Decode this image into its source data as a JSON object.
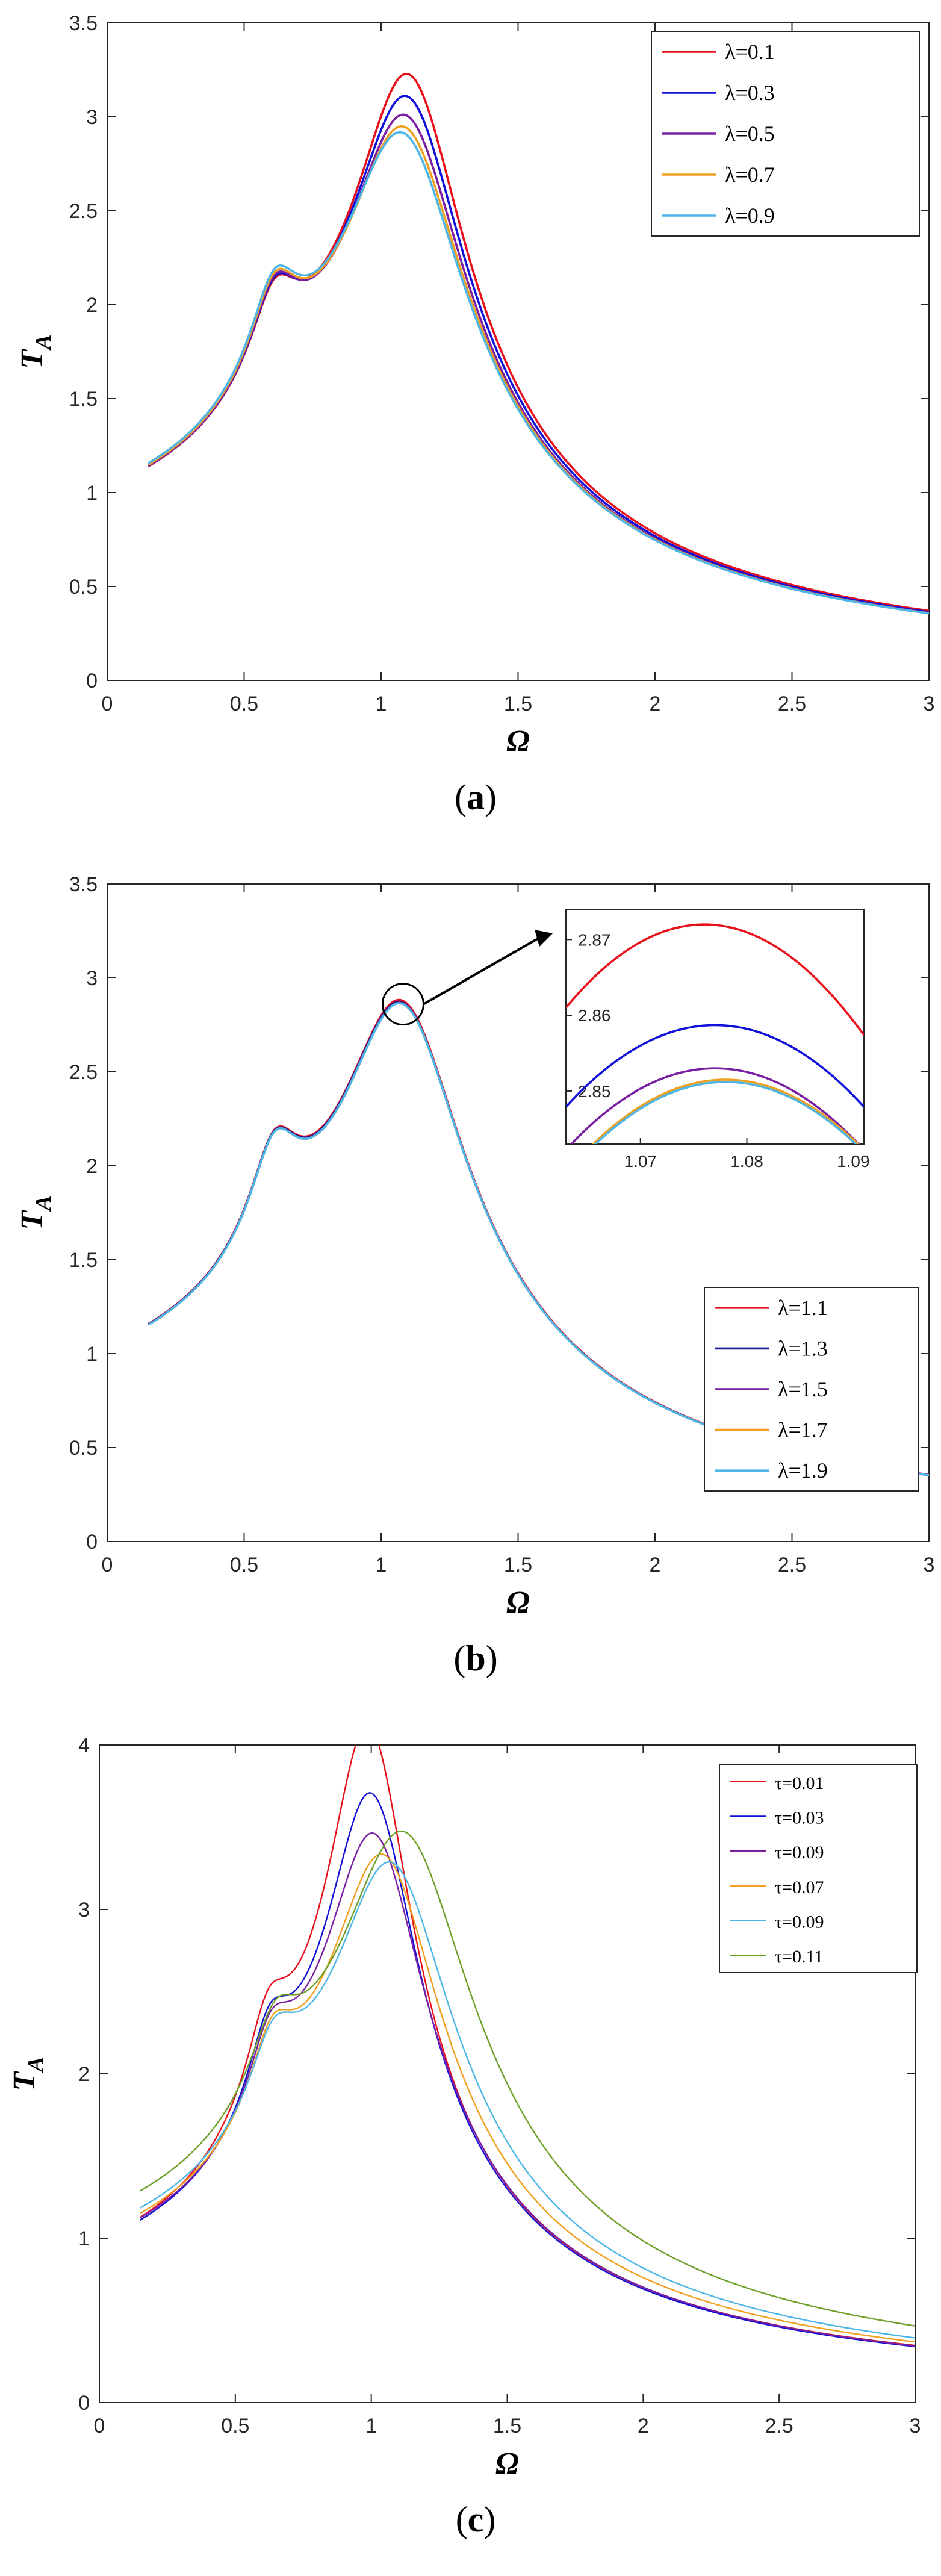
{
  "chart_data": [
    {
      "type": "line",
      "panel": "a",
      "caption_letter": "a",
      "xlabel": "Ω",
      "ylabel": "T",
      "ylabel_sub": "A",
      "xlim": [
        0,
        3
      ],
      "ylim": [
        0,
        3.5
      ],
      "xticks": [
        "0",
        "0.5",
        "1",
        "1.5",
        "2",
        "2.5",
        "3"
      ],
      "yticks": [
        "0",
        "0.5",
        "1",
        "1.5",
        "2",
        "2.5",
        "3",
        "3.5"
      ],
      "legend_position": "top-right",
      "series": [
        {
          "name": "λ=0.1",
          "color": "#e8101a",
          "model": {
            "A1": 0.65,
            "w1": 0.61,
            "g1": 0.09,
            "A2": 2.85,
            "w2": 1.1,
            "g2": 0.21,
            "B": 0.4
          }
        },
        {
          "name": "λ=0.3",
          "color": "#1010d8",
          "model": {
            "A1": 0.67,
            "w1": 0.61,
            "g1": 0.09,
            "A2": 2.72,
            "w2": 1.095,
            "g2": 0.215,
            "B": 0.41
          }
        },
        {
          "name": "λ=0.5",
          "color": "#7a1fa2",
          "model": {
            "A1": 0.69,
            "w1": 0.61,
            "g1": 0.09,
            "A2": 2.61,
            "w2": 1.09,
            "g2": 0.22,
            "B": 0.415
          }
        },
        {
          "name": "λ=0.7",
          "color": "#f0a020",
          "model": {
            "A1": 0.7,
            "w1": 0.61,
            "g1": 0.09,
            "A2": 2.54,
            "w2": 1.085,
            "g2": 0.225,
            "B": 0.42
          }
        },
        {
          "name": "λ=0.9",
          "color": "#4db6e6",
          "model": {
            "A1": 0.71,
            "w1": 0.61,
            "g1": 0.09,
            "A2": 2.5,
            "w2": 1.08,
            "g2": 0.228,
            "B": 0.425
          }
        }
      ]
    },
    {
      "type": "line",
      "panel": "b",
      "caption_letter": "b",
      "xlabel": "Ω",
      "ylabel": "T",
      "ylabel_sub": "A",
      "xlim": [
        0,
        3
      ],
      "ylim": [
        0,
        3.5
      ],
      "xticks": [
        "0",
        "0.5",
        "1",
        "1.5",
        "2",
        "2.5",
        "3"
      ],
      "yticks": [
        "0",
        "0.5",
        "1",
        "1.5",
        "2",
        "2.5",
        "3",
        "3.5"
      ],
      "legend_position": "bottom-right",
      "series": [
        {
          "name": "λ=1.1",
          "color": "#e8101a",
          "model": {
            "A1": 0.71,
            "w1": 0.61,
            "g1": 0.09,
            "A2": 2.46,
            "w2": 1.077,
            "g2": 0.23,
            "B": 0.43
          }
        },
        {
          "name": "λ=1.3",
          "color": "#1a1a9c",
          "model": {
            "A1": 0.71,
            "w1": 0.61,
            "g1": 0.09,
            "A2": 2.45,
            "w2": 1.077,
            "g2": 0.23,
            "B": 0.43
          }
        },
        {
          "name": "λ=1.5",
          "color": "#7a1fa2",
          "model": {
            "A1": 0.71,
            "w1": 0.61,
            "g1": 0.09,
            "A2": 2.445,
            "w2": 1.078,
            "g2": 0.23,
            "B": 0.43
          }
        },
        {
          "name": "λ=1.7",
          "color": "#f0a020",
          "model": {
            "A1": 0.71,
            "w1": 0.61,
            "g1": 0.09,
            "A2": 2.443,
            "w2": 1.078,
            "g2": 0.23,
            "B": 0.43
          }
        },
        {
          "name": "λ=1.9",
          "color": "#4db6e6",
          "model": {
            "A1": 0.71,
            "w1": 0.61,
            "g1": 0.09,
            "A2": 2.443,
            "w2": 1.078,
            "g2": 0.23,
            "B": 0.43
          }
        }
      ],
      "inset": {
        "xlim": [
          1.063,
          1.091
        ],
        "ylim": [
          2.843,
          2.874
        ],
        "xticks": [
          "1.07",
          "1.08",
          "1.09"
        ],
        "yticks": [
          "2.85",
          "2.86",
          "2.87"
        ],
        "series": [
          {
            "color": "#e8101a",
            "peak_x": 1.076,
            "peak_y": 2.872,
            "curv": 0.0065
          },
          {
            "color": "#1010d8",
            "peak_x": 1.077,
            "peak_y": 2.8587,
            "curv": 0.0055
          },
          {
            "color": "#7a1fa2",
            "peak_x": 1.077,
            "peak_y": 2.853,
            "curv": 0.0055
          },
          {
            "color": "#f0a020",
            "peak_x": 1.078,
            "peak_y": 2.8515,
            "curv": 0.0055
          },
          {
            "color": "#4db6e6",
            "peak_x": 1.078,
            "peak_y": 2.8512,
            "curv": 0.0055
          }
        ]
      }
    },
    {
      "type": "line",
      "panel": "c",
      "caption_letter": "c",
      "xlabel": "Ω",
      "ylabel": "T",
      "ylabel_sub": "A",
      "xlim": [
        0,
        3
      ],
      "ylim": [
        0,
        4
      ],
      "xticks": [
        "0",
        "0.5",
        "1",
        "1.5",
        "2",
        "2.5",
        "3"
      ],
      "yticks": [
        "0",
        "1",
        "2",
        "3",
        "4"
      ],
      "legend_position": "top-right",
      "series": [
        {
          "name": "τ=0.01",
          "color": "#e8101a",
          "model": {
            "A1": 0.75,
            "w1": 0.62,
            "g1": 0.08,
            "A2": 3.75,
            "w2": 0.99,
            "g2": 0.16,
            "B": 0.3
          }
        },
        {
          "name": "τ=0.03",
          "color": "#1010d8",
          "model": {
            "A1": 0.72,
            "w1": 0.625,
            "g1": 0.08,
            "A2": 3.33,
            "w2": 1.0,
            "g2": 0.175,
            "B": 0.32
          }
        },
        {
          "name": "τ=0.09",
          "color": "#7a1fa2",
          "model": {
            "A1": 0.7,
            "w1": 0.63,
            "g1": 0.085,
            "A2": 3.07,
            "w2": 1.01,
            "g2": 0.19,
            "B": 0.34
          }
        },
        {
          "name": "τ=0.07",
          "color": "#f0a020",
          "model": {
            "A1": 0.68,
            "w1": 0.635,
            "g1": 0.085,
            "A2": 2.95,
            "w2": 1.045,
            "g2": 0.21,
            "B": 0.36
          }
        },
        {
          "name": "τ=0.09",
          "color": "#4db6e6",
          "model": {
            "A1": 0.66,
            "w1": 0.64,
            "g1": 0.09,
            "A2": 2.9,
            "w2": 1.075,
            "g2": 0.225,
            "B": 0.38
          }
        },
        {
          "name": "τ=0.11",
          "color": "#6ea02a",
          "model": {
            "A1": 0.64,
            "w1": 0.645,
            "g1": 0.09,
            "A2": 3.1,
            "w2": 1.12,
            "g2": 0.25,
            "B": 0.4
          }
        }
      ]
    }
  ]
}
